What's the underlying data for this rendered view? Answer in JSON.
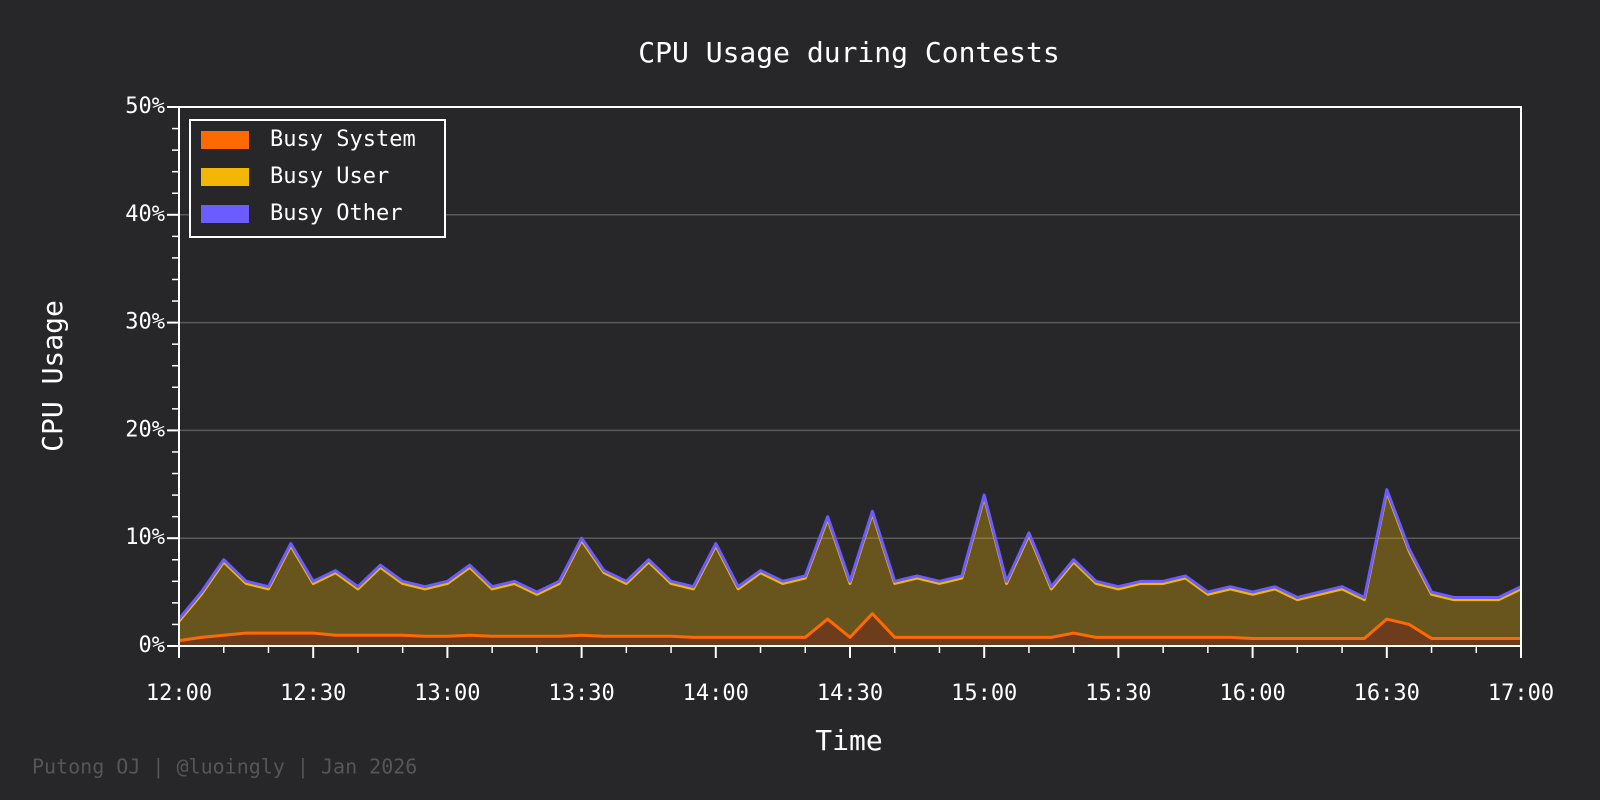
{
  "chart_data": {
    "type": "stacked_area",
    "title": "CPU Usage during Contests",
    "x_label": "Time",
    "y_label": "CPU Usage",
    "footer": "Putong OJ | @luoingly | Jan 2026",
    "legend": "upper left",
    "grid": true,
    "x": [
      "12:00",
      "12:05",
      "12:10",
      "12:15",
      "12:20",
      "12:25",
      "12:30",
      "12:35",
      "12:40",
      "12:45",
      "12:50",
      "12:55",
      "13:00",
      "13:05",
      "13:10",
      "13:15",
      "13:20",
      "13:25",
      "13:30",
      "13:35",
      "13:40",
      "13:45",
      "13:50",
      "13:55",
      "14:00",
      "14:05",
      "14:10",
      "14:15",
      "14:20",
      "14:25",
      "14:30",
      "14:35",
      "14:40",
      "14:45",
      "14:50",
      "14:55",
      "15:00",
      "15:05",
      "15:10",
      "15:15",
      "15:20",
      "15:25",
      "15:30",
      "15:35",
      "15:40",
      "15:45",
      "15:50",
      "15:55",
      "16:00",
      "16:05",
      "16:10",
      "16:15",
      "16:20",
      "16:25",
      "16:30",
      "16:35",
      "16:40",
      "16:45",
      "16:50",
      "16:55",
      "17:00"
    ],
    "series": [
      {
        "name": "Busy System",
        "color": "#ff6a00",
        "values": [
          0.5,
          0.8,
          1,
          1.2,
          1.2,
          1.2,
          1.2,
          1,
          1,
          1,
          1,
          0.9,
          0.9,
          1,
          0.9,
          0.9,
          0.9,
          0.9,
          1,
          0.9,
          0.9,
          0.9,
          0.9,
          0.8,
          0.8,
          0.8,
          0.8,
          0.8,
          0.8,
          2.5,
          0.8,
          3,
          0.8,
          0.8,
          0.8,
          0.8,
          0.8,
          0.8,
          0.8,
          0.8,
          1.2,
          0.8,
          0.8,
          0.8,
          0.8,
          0.8,
          0.8,
          0.8,
          0.7,
          0.7,
          0.7,
          0.7,
          0.7,
          0.7,
          2.5,
          2,
          0.7,
          0.7,
          0.7,
          0.7,
          0.7
        ]
      },
      {
        "name": "Busy User",
        "color": "#f2b705",
        "values": [
          1.8,
          4,
          6.8,
          4.6,
          4.1,
          8.1,
          4.6,
          5.8,
          4.3,
          6.3,
          4.8,
          4.4,
          4.9,
          6.3,
          4.4,
          4.9,
          3.9,
          4.9,
          8.8,
          5.9,
          4.9,
          6.9,
          4.9,
          4.5,
          8.5,
          4.5,
          6,
          5,
          5.5,
          9.3,
          5,
          9.3,
          5,
          5.5,
          5,
          5.5,
          13,
          5,
          9.5,
          4.5,
          6.6,
          5,
          4.5,
          5,
          5,
          5.5,
          4,
          4.5,
          4.1,
          4.6,
          3.6,
          4.1,
          4.6,
          3.6,
          11.8,
          6.8,
          4.1,
          3.6,
          3.6,
          3.6,
          4.6
        ]
      },
      {
        "name": "Busy Other",
        "color": "#6b5cff",
        "values": [
          0.2,
          0.2,
          0.2,
          0.2,
          0.2,
          0.2,
          0.2,
          0.2,
          0.2,
          0.2,
          0.2,
          0.2,
          0.2,
          0.2,
          0.2,
          0.2,
          0.2,
          0.2,
          0.2,
          0.2,
          0.2,
          0.2,
          0.2,
          0.2,
          0.2,
          0.2,
          0.2,
          0.2,
          0.2,
          0.2,
          0.2,
          0.2,
          0.2,
          0.2,
          0.2,
          0.2,
          0.2,
          0.2,
          0.2,
          0.2,
          0.2,
          0.2,
          0.2,
          0.2,
          0.2,
          0.2,
          0.2,
          0.2,
          0.2,
          0.2,
          0.2,
          0.2,
          0.2,
          0.2,
          0.2,
          0.2,
          0.2,
          0.2,
          0.2,
          0.2,
          0.2
        ]
      }
    ],
    "xlim": [
      "12:00",
      "17:00"
    ],
    "xticks": [
      "12:00",
      "12:30",
      "13:00",
      "13:30",
      "14:00",
      "14:30",
      "15:00",
      "15:30",
      "16:00",
      "16:30",
      "17:00"
    ],
    "xminorticks": [
      "12:10",
      "12:20",
      "12:40",
      "12:50",
      "13:10",
      "13:20",
      "13:40",
      "13:50",
      "14:10",
      "14:20",
      "14:40",
      "14:50",
      "15:10",
      "15:20",
      "15:40",
      "15:50",
      "16:10",
      "16:20",
      "16:40",
      "16:50"
    ],
    "ylim": [
      0,
      50
    ],
    "yticks": [
      {
        "value": 0,
        "label": "0%"
      },
      {
        "value": 10,
        "label": "10%"
      },
      {
        "value": 20,
        "label": "20%"
      },
      {
        "value": 30,
        "label": "30%"
      },
      {
        "value": 40,
        "label": "40%"
      },
      {
        "value": 50,
        "label": "50%"
      }
    ],
    "yminorticks": [
      2,
      4,
      6,
      8,
      12,
      14,
      16,
      18,
      22,
      24,
      26,
      28,
      32,
      34,
      36,
      38,
      42,
      44,
      46,
      48
    ]
  }
}
